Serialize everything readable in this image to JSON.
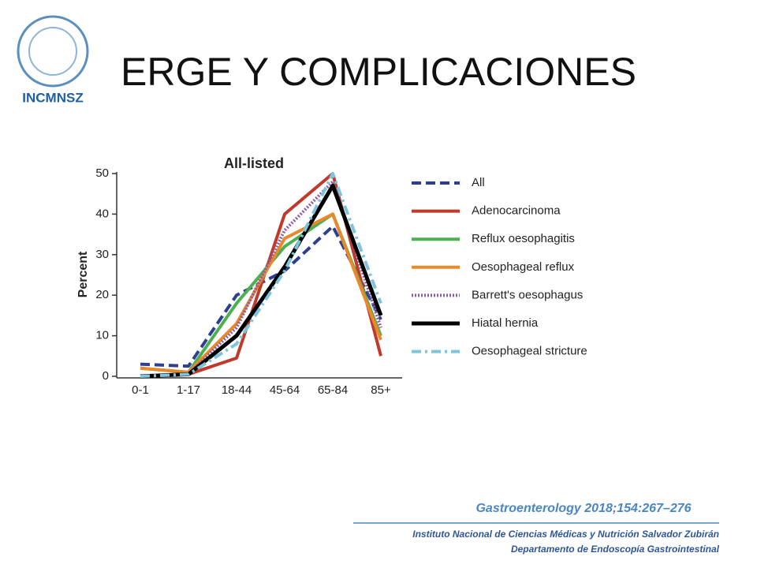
{
  "logo": {
    "label": "INCMNSZ"
  },
  "title": "ERGE Y COMPLICACIONES",
  "chart_data": {
    "type": "line",
    "title": "All-listed",
    "y_label": "Percent",
    "categories": [
      "0-1",
      "1-17",
      "18-44",
      "45-64",
      "65-84",
      "85+"
    ],
    "ylim": [
      0,
      50
    ],
    "yticks": [
      0,
      10,
      20,
      30,
      40,
      50
    ],
    "series": [
      {
        "name": "All",
        "color": "#2e3f8f",
        "style": "dashed",
        "values": [
          3,
          2.5,
          20,
          26,
          37,
          14
        ]
      },
      {
        "name": "Adenocarcinoma",
        "color": "#c0392b",
        "style": "solid",
        "values": [
          0,
          0.5,
          4.5,
          40,
          50,
          5
        ]
      },
      {
        "name": "Reflux oesophagitis",
        "color": "#4caf50",
        "style": "solid",
        "values": [
          2,
          1,
          18,
          32,
          40,
          10
        ]
      },
      {
        "name": "Oesophageal reflux",
        "color": "#e8892b",
        "style": "solid",
        "values": [
          2,
          1,
          13,
          34,
          40,
          9
        ]
      },
      {
        "name": "Barrett's oesophagus",
        "color": "#8e5ea2",
        "style": "dotted",
        "values": [
          0,
          0.5,
          12,
          36,
          48,
          12
        ]
      },
      {
        "name": "Hiatal hernia",
        "color": "#000000",
        "style": "bold",
        "values": [
          0,
          0.5,
          10,
          27,
          47,
          15
        ]
      },
      {
        "name": "Oesophageal stricture",
        "color": "#7fc4dc",
        "style": "dashdot",
        "values": [
          0,
          0.5,
          8,
          26,
          50,
          18
        ]
      }
    ]
  },
  "footer": {
    "citation": "Gastroenterology  2018;154:267–276",
    "institution": "Instituto Nacional de Ciencias Médicas y Nutrición Salvador Zubirán",
    "department": "Departamento de Endoscopía Gastrointestinal"
  }
}
